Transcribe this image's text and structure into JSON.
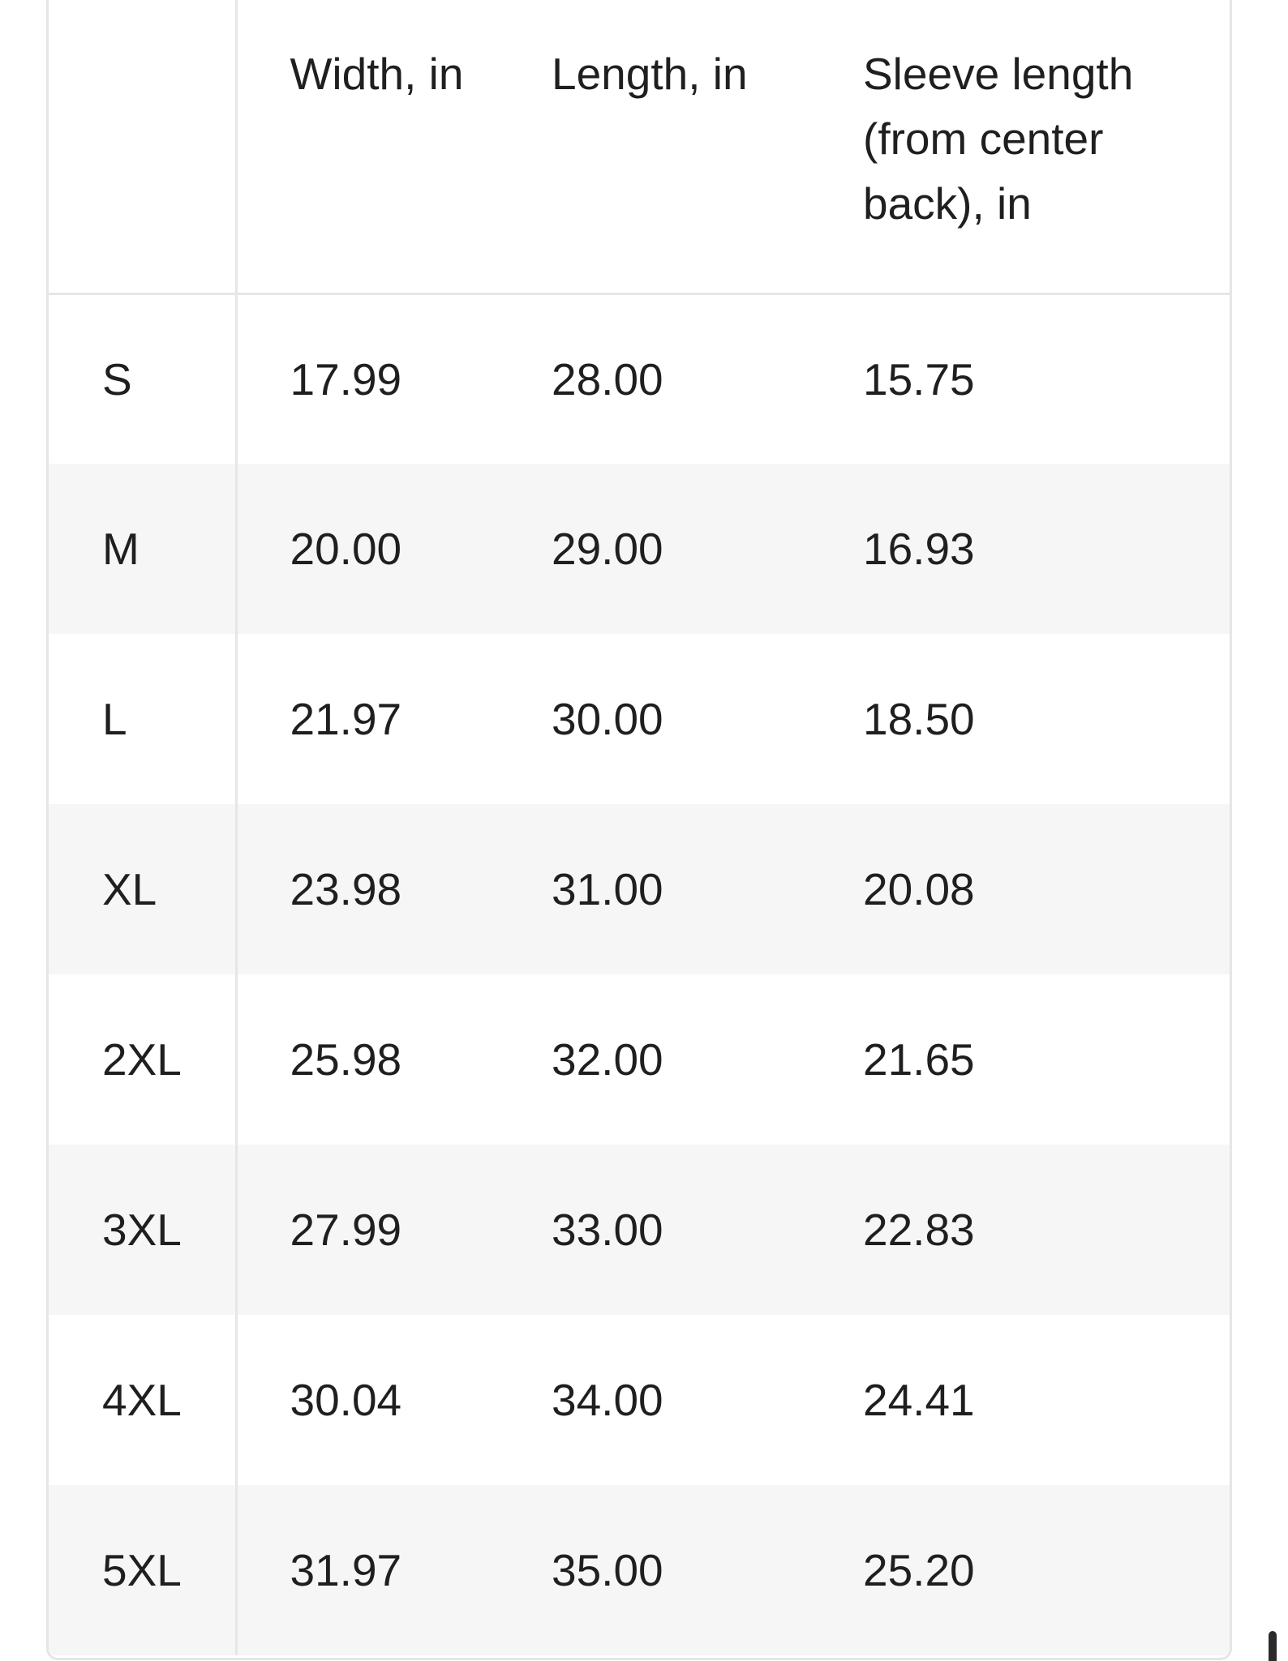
{
  "table": {
    "headers": {
      "size": "",
      "width": "Width, in",
      "length": "Length, in",
      "sleeve": "Sleeve length (from center back), in"
    },
    "rows": [
      {
        "size": "S",
        "width": "17.99",
        "length": "28.00",
        "sleeve": "15.75"
      },
      {
        "size": "M",
        "width": "20.00",
        "length": "29.00",
        "sleeve": "16.93"
      },
      {
        "size": "L",
        "width": "21.97",
        "length": "30.00",
        "sleeve": "18.50"
      },
      {
        "size": "XL",
        "width": "23.98",
        "length": "31.00",
        "sleeve": "20.08"
      },
      {
        "size": "2XL",
        "width": "25.98",
        "length": "32.00",
        "sleeve": "21.65"
      },
      {
        "size": "3XL",
        "width": "27.99",
        "length": "33.00",
        "sleeve": "22.83"
      },
      {
        "size": "4XL",
        "width": "30.04",
        "length": "34.00",
        "sleeve": "24.41"
      },
      {
        "size": "5XL",
        "width": "31.97",
        "length": "35.00",
        "sleeve": "25.20"
      }
    ]
  },
  "colors": {
    "text": "#1f1f1f",
    "border": "#e6e6e6",
    "alt_row": "#f6f6f6",
    "background": "#ffffff"
  }
}
